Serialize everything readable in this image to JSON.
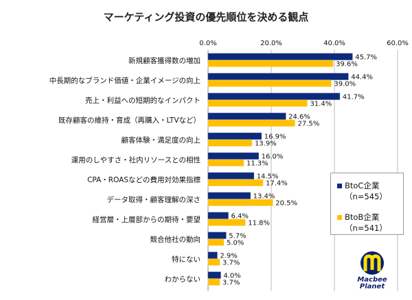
{
  "chart_data": {
    "type": "bar",
    "orientation": "horizontal",
    "title": "マーケティング投資の優先順位を決める観点",
    "categories": [
      "新規顧客獲得数の増加",
      "中長期的なブランド価値・企業イメージの向上",
      "売上・利益への短期的なインパクト",
      "既存顧客の維持・育成（再購入・LTVなど）",
      "顧客体験・満足度の向上",
      "運用のしやすさ・社内リソースとの相性",
      "CPA・ROASなどの費用対効果指標",
      "データ取得・顧客理解の深さ",
      "経営層・上層部からの期待・要望",
      "競合他社の動向",
      "特にない",
      "わからない"
    ],
    "series": [
      {
        "name": "BtoC企業",
        "n": "（n=545）",
        "color": "#0d2a7a",
        "values": [
          45.7,
          44.4,
          41.7,
          24.6,
          16.9,
          16.0,
          14.5,
          13.4,
          6.4,
          5.7,
          2.9,
          4.0
        ]
      },
      {
        "name": "BtoB企業",
        "n": "（n=541）",
        "color": "#ffc000",
        "values": [
          39.6,
          39.0,
          31.4,
          27.5,
          13.9,
          11.3,
          17.4,
          20.5,
          11.8,
          5.0,
          3.7,
          3.7
        ]
      }
    ],
    "xlim": [
      0,
      60
    ],
    "xticks": [
      "0.0%",
      "20.0%",
      "40.0%",
      "60.0%"
    ],
    "grid": true,
    "legend": "right"
  },
  "logo": {
    "text": "Macbee Planet",
    "line1": "Macbee",
    "line2": "Planet"
  }
}
